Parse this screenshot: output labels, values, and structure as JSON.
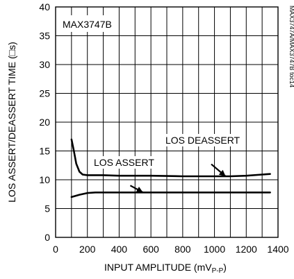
{
  "chart_data": {
    "type": "line",
    "inset_label": "MAX3747B",
    "side_id": "MAX3747A/MAX3747B toc14",
    "xlabel_main": "INPUT AMPLITUDE (mV",
    "xlabel_sub": "P-P",
    "xlabel_close": ")",
    "ylabel": "LOS ASSERT/DEASSERT TIME (□s)",
    "xlim": [
      0,
      1400
    ],
    "ylim": [
      0,
      40
    ],
    "x_ticks": [
      "0",
      "200",
      "400",
      "600",
      "800",
      "1000",
      "1200",
      "1400"
    ],
    "y_ticks": [
      "0",
      "5",
      "10",
      "15",
      "20",
      "25",
      "30",
      "35",
      "40"
    ],
    "x_tick_values": [
      0,
      200,
      400,
      600,
      800,
      1000,
      1200,
      1400
    ],
    "y_tick_values": [
      0,
      5,
      10,
      15,
      20,
      25,
      30,
      35,
      40
    ],
    "grid": true,
    "series": [
      {
        "name": "LOS DEASSERT",
        "x": [
          100,
          115,
          130,
          150,
          170,
          200,
          250,
          300,
          400,
          600,
          800,
          1000,
          1100,
          1200,
          1300,
          1350
        ],
        "y": [
          17.0,
          15.0,
          12.8,
          11.4,
          10.9,
          10.8,
          10.8,
          10.8,
          10.7,
          10.7,
          10.6,
          10.6,
          10.6,
          10.7,
          10.9,
          11.0
        ]
      },
      {
        "name": "LOS ASSERT",
        "x": [
          100,
          150,
          200,
          250,
          300,
          400,
          600,
          800,
          1000,
          1200,
          1350
        ],
        "y": [
          7.0,
          7.4,
          7.7,
          7.8,
          7.8,
          7.8,
          7.8,
          7.8,
          7.8,
          7.8,
          7.8
        ]
      }
    ],
    "annotations": [
      {
        "text": "LOS DEASSERT",
        "series": 0,
        "arrow_to": [
          1070,
          10.6
        ],
        "arrow_from": [
          980,
          12.7
        ]
      },
      {
        "text": "LOS ASSERT",
        "series": 1,
        "arrow_to": [
          550,
          7.8
        ],
        "arrow_from": [
          470,
          9.0
        ]
      }
    ]
  }
}
